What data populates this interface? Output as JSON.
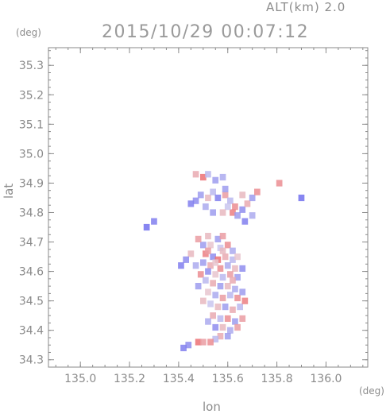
{
  "header": {
    "alt_label": "ALT(km) 2.0",
    "timestamp": "2015/10/29 00:07:12"
  },
  "chart_data": {
    "type": "heatmap",
    "title": "2015/10/29 00:07:12",
    "subtitle": "ALT(km) 2.0",
    "xlabel": "lon",
    "ylabel": "lat",
    "xunit": "(deg)",
    "yunit": "(deg)",
    "xlim": [
      134.87,
      136.17
    ],
    "ylim": [
      34.275,
      35.36
    ],
    "xticks": [
      135.0,
      135.2,
      135.4,
      135.6,
      135.8,
      136.0
    ],
    "xtick_labels": [
      "135.0",
      "135.2",
      "135.4",
      "135.6",
      "135.8",
      "136.0"
    ],
    "yticks": [
      34.3,
      34.4,
      34.5,
      34.6,
      34.7,
      34.8,
      34.9,
      35.0,
      35.1,
      35.2,
      35.3
    ],
    "ytick_labels": [
      "34.3",
      "34.4",
      "34.5",
      "34.6",
      "34.7",
      "34.8",
      "34.9",
      "35.0",
      "35.1",
      "35.2",
      "35.3"
    ],
    "grid": false,
    "colors": {
      "positive": "#ee5555",
      "negative": "#5555ee",
      "neutral": "#e6e2ee",
      "axis": "#8a8a8a"
    },
    "cells": [
      [
        135.47,
        34.93,
        0.4
      ],
      [
        135.5,
        34.92,
        0.8
      ],
      [
        135.52,
        34.93,
        -0.3
      ],
      [
        135.55,
        34.91,
        -0.5
      ],
      [
        135.58,
        34.92,
        -0.4
      ],
      [
        135.49,
        34.86,
        -0.5
      ],
      [
        135.47,
        34.84,
        -0.6
      ],
      [
        135.52,
        34.85,
        0.3
      ],
      [
        135.54,
        34.87,
        -0.3
      ],
      [
        135.56,
        34.85,
        -0.7
      ],
      [
        135.59,
        34.86,
        0.5
      ],
      [
        135.61,
        34.84,
        -0.3
      ],
      [
        135.63,
        34.82,
        0.6
      ],
      [
        135.62,
        34.8,
        0.7
      ],
      [
        135.64,
        34.79,
        -0.5
      ],
      [
        135.66,
        34.81,
        -0.6
      ],
      [
        135.68,
        34.83,
        0.4
      ],
      [
        135.7,
        34.85,
        -0.5
      ],
      [
        135.72,
        34.87,
        0.6
      ],
      [
        135.67,
        34.77,
        -0.7
      ],
      [
        135.7,
        34.79,
        -0.4
      ],
      [
        135.66,
        34.86,
        0.3
      ],
      [
        135.6,
        34.82,
        -0.2
      ],
      [
        135.58,
        34.8,
        0.3
      ],
      [
        135.51,
        34.82,
        -0.4
      ],
      [
        135.54,
        34.8,
        -0.5
      ],
      [
        135.45,
        34.83,
        -0.7
      ],
      [
        135.81,
        34.9,
        0.6
      ],
      [
        135.9,
        34.85,
        -0.8
      ],
      [
        135.3,
        34.77,
        -0.7
      ],
      [
        135.27,
        34.75,
        -0.8
      ],
      [
        135.59,
        34.88,
        -0.5
      ],
      [
        135.52,
        34.72,
        0.3
      ],
      [
        135.56,
        34.71,
        -0.5
      ],
      [
        135.58,
        34.72,
        0.5
      ],
      [
        135.5,
        34.69,
        -0.5
      ],
      [
        135.53,
        34.69,
        0.2
      ],
      [
        135.57,
        34.68,
        -0.2
      ],
      [
        135.6,
        34.69,
        0.6
      ],
      [
        135.62,
        34.67,
        -0.4
      ],
      [
        135.51,
        34.66,
        0.7
      ],
      [
        135.54,
        34.65,
        -0.6
      ],
      [
        135.56,
        34.64,
        0.8
      ],
      [
        135.59,
        34.65,
        0.4
      ],
      [
        135.62,
        34.64,
        -0.3
      ],
      [
        135.64,
        34.65,
        0.2
      ],
      [
        135.5,
        34.63,
        -0.5
      ],
      [
        135.53,
        34.62,
        0.4
      ],
      [
        135.57,
        34.61,
        0.6
      ],
      [
        135.6,
        34.62,
        -0.4
      ],
      [
        135.63,
        34.61,
        0.3
      ],
      [
        135.52,
        34.6,
        -0.6
      ],
      [
        135.55,
        34.59,
        0.2
      ],
      [
        135.58,
        34.58,
        -0.3
      ],
      [
        135.61,
        34.59,
        0.5
      ],
      [
        135.64,
        34.58,
        -0.5
      ],
      [
        135.49,
        34.59,
        0.6
      ],
      [
        135.47,
        34.62,
        -0.4
      ],
      [
        135.45,
        34.66,
        0.3
      ],
      [
        135.43,
        34.64,
        -0.6
      ],
      [
        135.41,
        34.62,
        -0.7
      ],
      [
        135.48,
        34.71,
        0.5
      ],
      [
        135.51,
        34.57,
        -0.3
      ],
      [
        135.54,
        34.56,
        0.4
      ],
      [
        135.57,
        34.55,
        -0.5
      ],
      [
        135.6,
        34.55,
        0.3
      ],
      [
        135.63,
        34.54,
        -0.4
      ],
      [
        135.52,
        34.53,
        0.2
      ],
      [
        135.55,
        34.52,
        -0.4
      ],
      [
        135.58,
        34.51,
        0.5
      ],
      [
        135.61,
        34.52,
        -0.3
      ],
      [
        135.64,
        34.51,
        0.6
      ],
      [
        135.66,
        34.53,
        -0.5
      ],
      [
        135.53,
        34.49,
        -0.2
      ],
      [
        135.56,
        34.48,
        0.3
      ],
      [
        135.59,
        34.48,
        -0.5
      ],
      [
        135.62,
        34.47,
        0.4
      ],
      [
        135.65,
        34.48,
        -0.3
      ],
      [
        135.67,
        34.5,
        0.7
      ],
      [
        135.54,
        34.45,
        0.4
      ],
      [
        135.57,
        34.44,
        -0.3
      ],
      [
        135.6,
        34.44,
        0.6
      ],
      [
        135.63,
        34.43,
        -0.5
      ],
      [
        135.66,
        34.44,
        0.5
      ],
      [
        135.55,
        34.41,
        -0.6
      ],
      [
        135.58,
        34.41,
        0.3
      ],
      [
        135.61,
        34.4,
        -0.4
      ],
      [
        135.64,
        34.41,
        0.5
      ],
      [
        135.57,
        34.38,
        0.4
      ],
      [
        135.6,
        34.38,
        -0.5
      ],
      [
        135.55,
        34.37,
        -0.3
      ],
      [
        135.48,
        34.36,
        0.8
      ],
      [
        135.5,
        34.36,
        0.5
      ],
      [
        135.53,
        34.36,
        0.6
      ],
      [
        135.44,
        34.35,
        -0.6
      ],
      [
        135.42,
        34.34,
        -0.7
      ],
      [
        135.58,
        34.67,
        0.3
      ],
      [
        135.55,
        34.63,
        0.2
      ],
      [
        135.52,
        34.67,
        0.5
      ],
      [
        135.66,
        34.61,
        -0.6
      ],
      [
        135.62,
        34.57,
        0.4
      ],
      [
        135.48,
        34.55,
        -0.5
      ],
      [
        135.5,
        34.5,
        0.3
      ],
      [
        135.52,
        34.43,
        -0.4
      ]
    ]
  }
}
